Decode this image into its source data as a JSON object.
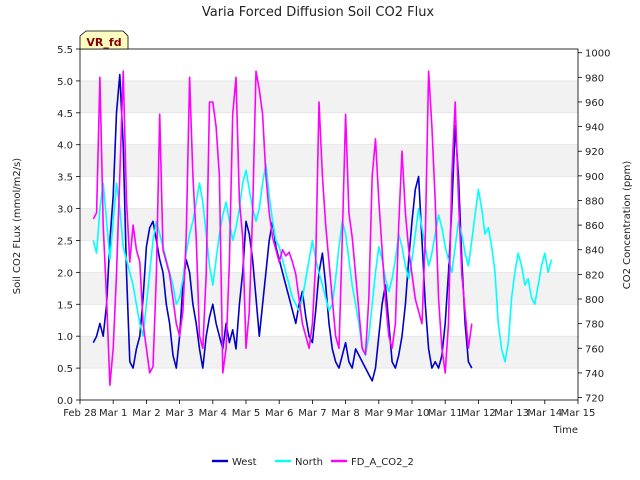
{
  "chart_data": {
    "type": "line",
    "title": "Varia Forced Diffusion Soil CO2 Flux",
    "xlabel": "Time",
    "ylabel_left": "Soil CO2 FLux (mmol/m2/s)",
    "ylabel_right": "CO2 Concentration (ppm)",
    "badge": "VR_fd",
    "x_ticks": [
      "Feb 28",
      "Mar 1",
      "Mar 2",
      "Mar 3",
      "Mar 4",
      "Mar 5",
      "Mar 6",
      "Mar 7",
      "Mar 8",
      "Mar 9",
      "Mar 10",
      "Mar 11",
      "Mar 12",
      "Mar 13",
      "Mar 14",
      "Mar 15"
    ],
    "x_range_days": [
      0,
      15
    ],
    "ylim_left": [
      0.0,
      5.5
    ],
    "ylim_right": [
      718,
      1003
    ],
    "y_ticks_left": [
      "0.0",
      "0.5",
      "1.0",
      "1.5",
      "2.0",
      "2.5",
      "3.0",
      "3.5",
      "4.0",
      "4.5",
      "5.0",
      "5.5"
    ],
    "y_ticks_right": [
      "720",
      "740",
      "760",
      "780",
      "800",
      "820",
      "840",
      "860",
      "880",
      "900",
      "920",
      "940",
      "960",
      "980",
      "1000"
    ],
    "grid": "horizontal bands",
    "legend_position": "bottom-center",
    "series": [
      {
        "name": "West",
        "axis": "left",
        "color": "#0000cc",
        "x": [
          0.4,
          0.5,
          0.6,
          0.7,
          0.8,
          0.9,
          1.0,
          1.1,
          1.2,
          1.3,
          1.4,
          1.5,
          1.6,
          1.7,
          1.8,
          1.9,
          2.0,
          2.1,
          2.2,
          2.3,
          2.4,
          2.5,
          2.6,
          2.7,
          2.8,
          2.9,
          3.0,
          3.1,
          3.2,
          3.3,
          3.4,
          3.5,
          3.6,
          3.7,
          3.8,
          3.9,
          4.0,
          4.1,
          4.2,
          4.3,
          4.4,
          4.5,
          4.6,
          4.7,
          4.8,
          4.9,
          5.0,
          5.1,
          5.2,
          5.3,
          5.4,
          5.5,
          5.6,
          5.7,
          5.8,
          5.9,
          6.0,
          6.1,
          6.2,
          6.3,
          6.4,
          6.5,
          6.6,
          6.7,
          6.8,
          6.9,
          7.0,
          7.1,
          7.2,
          7.3,
          7.4,
          7.5,
          7.6,
          7.7,
          7.8,
          7.9,
          8.0,
          8.1,
          8.2,
          8.3,
          8.4,
          8.5,
          8.6,
          8.7,
          8.8,
          8.9,
          9.0,
          9.1,
          9.2,
          9.3,
          9.4,
          9.5,
          9.6,
          9.7,
          9.8,
          9.9,
          10.0,
          10.1,
          10.2,
          10.3,
          10.4,
          10.5,
          10.6,
          10.7,
          10.8,
          10.9,
          11.0,
          11.1,
          11.2,
          11.3,
          11.4,
          11.5,
          11.6,
          11.7,
          11.8
        ],
        "y": [
          0.9,
          1.0,
          1.2,
          1.0,
          1.5,
          2.5,
          3.2,
          4.5,
          5.1,
          4.0,
          2.0,
          0.6,
          0.5,
          0.8,
          1.0,
          1.6,
          2.4,
          2.7,
          2.8,
          2.5,
          2.2,
          2.0,
          1.5,
          1.2,
          0.7,
          0.5,
          1.0,
          1.8,
          2.2,
          2.0,
          1.5,
          1.2,
          0.8,
          0.5,
          1.0,
          1.3,
          1.5,
          1.2,
          1.0,
          0.8,
          1.2,
          0.9,
          1.1,
          0.8,
          1.5,
          2.0,
          2.8,
          2.6,
          2.2,
          1.6,
          1.0,
          1.5,
          2.0,
          2.5,
          2.8,
          2.4,
          2.2,
          2.0,
          1.8,
          1.6,
          1.4,
          1.2,
          1.5,
          1.7,
          1.3,
          1.0,
          0.9,
          1.4,
          2.0,
          2.3,
          1.8,
          1.2,
          0.8,
          0.6,
          0.5,
          0.7,
          0.9,
          0.6,
          0.5,
          0.8,
          0.7,
          0.6,
          0.5,
          0.4,
          0.3,
          0.5,
          1.0,
          1.5,
          1.8,
          1.2,
          0.6,
          0.5,
          0.7,
          1.0,
          1.5,
          2.2,
          2.8,
          3.3,
          3.5,
          2.5,
          1.5,
          0.8,
          0.5,
          0.6,
          0.5,
          0.7,
          1.2,
          2.0,
          3.0,
          4.3,
          3.5,
          2.2,
          1.2,
          0.6,
          0.5
        ],
        "_note_units": "x in days since Feb 28"
      },
      {
        "name": "North",
        "axis": "left",
        "color": "#00ffff",
        "x": [
          0.4,
          0.5,
          0.6,
          0.7,
          0.8,
          0.9,
          1.0,
          1.1,
          1.2,
          1.3,
          1.4,
          1.5,
          1.6,
          1.7,
          1.8,
          1.9,
          2.0,
          2.1,
          2.2,
          2.3,
          2.4,
          2.5,
          2.6,
          2.7,
          2.8,
          2.9,
          3.0,
          3.1,
          3.2,
          3.3,
          3.4,
          3.5,
          3.6,
          3.7,
          3.8,
          3.9,
          4.0,
          4.1,
          4.2,
          4.3,
          4.4,
          4.5,
          4.6,
          4.7,
          4.8,
          4.9,
          5.0,
          5.1,
          5.2,
          5.3,
          5.4,
          5.5,
          5.6,
          5.7,
          5.8,
          5.9,
          6.0,
          6.1,
          6.2,
          6.3,
          6.4,
          6.5,
          6.6,
          6.7,
          6.8,
          6.9,
          7.0,
          7.1,
          7.2,
          7.3,
          7.4,
          7.5,
          7.6,
          7.7,
          7.8,
          7.9,
          8.0,
          8.1,
          8.2,
          8.3,
          8.4,
          8.5,
          8.6,
          8.7,
          8.8,
          8.9,
          9.0,
          9.1,
          9.2,
          9.3,
          9.4,
          9.5,
          9.6,
          9.7,
          9.8,
          9.9,
          10.0,
          10.1,
          10.2,
          10.3,
          10.4,
          10.5,
          10.6,
          10.7,
          10.8,
          10.9,
          11.0,
          11.1,
          11.2,
          11.3,
          11.4,
          11.5,
          11.6,
          11.7,
          11.8,
          11.9,
          12.0,
          12.1,
          12.2,
          12.3,
          12.4,
          12.5,
          12.6,
          12.7,
          12.8,
          12.9,
          13.0,
          13.1,
          13.2,
          13.3,
          13.4,
          13.5,
          13.6,
          13.7,
          13.8,
          13.9,
          14.0,
          14.1,
          14.2
        ],
        "y": [
          2.5,
          2.3,
          3.0,
          3.4,
          2.8,
          2.2,
          2.8,
          3.4,
          3.0,
          2.4,
          2.2,
          2.0,
          1.8,
          1.5,
          1.2,
          1.0,
          1.5,
          2.0,
          2.5,
          2.8,
          2.6,
          2.4,
          2.2,
          2.0,
          1.8,
          1.5,
          1.6,
          1.9,
          2.3,
          2.6,
          2.8,
          3.1,
          3.4,
          3.1,
          2.6,
          2.1,
          1.8,
          2.2,
          2.6,
          2.9,
          3.1,
          2.8,
          2.5,
          2.7,
          3.0,
          3.4,
          3.6,
          3.3,
          3.0,
          2.8,
          3.0,
          3.4,
          3.7,
          3.2,
          2.8,
          2.5,
          2.4,
          2.2,
          2.0,
          1.8,
          1.6,
          1.5,
          1.4,
          1.6,
          1.9,
          2.2,
          2.5,
          2.2,
          2.0,
          1.8,
          1.6,
          1.4,
          1.5,
          1.9,
          2.4,
          2.8,
          2.6,
          2.2,
          1.8,
          1.5,
          1.2,
          0.8,
          0.7,
          1.0,
          1.5,
          2.0,
          2.4,
          2.2,
          1.9,
          1.7,
          1.9,
          2.2,
          2.6,
          2.4,
          2.1,
          1.9,
          2.2,
          2.6,
          3.0,
          2.7,
          2.4,
          2.1,
          2.3,
          2.6,
          2.9,
          2.7,
          2.4,
          2.2,
          2.0,
          2.4,
          2.8,
          2.6,
          2.3,
          2.1,
          2.5,
          2.9,
          3.3,
          3.0,
          2.6,
          2.7,
          2.4,
          2.0,
          1.2,
          0.8,
          0.6,
          0.9,
          1.6,
          2.0,
          2.3,
          2.1,
          1.8,
          1.9,
          1.6,
          1.5,
          1.8,
          2.1,
          2.3,
          2.0,
          2.2
        ],
        "_note_units": "x in days since Feb 28"
      },
      {
        "name": "FD_A_CO2_2",
        "axis": "right",
        "color": "#ff00ff",
        "x": [
          0.4,
          0.5,
          0.6,
          0.7,
          0.8,
          0.9,
          1.0,
          1.1,
          1.2,
          1.3,
          1.4,
          1.5,
          1.6,
          1.7,
          1.8,
          1.9,
          2.0,
          2.1,
          2.2,
          2.3,
          2.4,
          2.5,
          2.6,
          2.7,
          2.8,
          2.9,
          3.0,
          3.1,
          3.2,
          3.3,
          3.4,
          3.5,
          3.6,
          3.7,
          3.8,
          3.9,
          4.0,
          4.1,
          4.2,
          4.3,
          4.4,
          4.5,
          4.6,
          4.7,
          4.8,
          4.9,
          5.0,
          5.1,
          5.2,
          5.3,
          5.4,
          5.5,
          5.6,
          5.7,
          5.8,
          5.9,
          6.0,
          6.1,
          6.2,
          6.3,
          6.4,
          6.5,
          6.6,
          6.7,
          6.8,
          6.9,
          7.0,
          7.1,
          7.2,
          7.3,
          7.4,
          7.5,
          7.6,
          7.7,
          7.8,
          7.9,
          8.0,
          8.1,
          8.2,
          8.3,
          8.4,
          8.5,
          8.6,
          8.7,
          8.8,
          8.9,
          9.0,
          9.1,
          9.2,
          9.3,
          9.4,
          9.5,
          9.6,
          9.7,
          9.8,
          9.9,
          10.0,
          10.1,
          10.2,
          10.3,
          10.4,
          10.5,
          10.6,
          10.7,
          10.8,
          10.9,
          11.0,
          11.1,
          11.2,
          11.3,
          11.4,
          11.5,
          11.6,
          11.7,
          11.8
        ],
        "y": [
          865,
          870,
          980,
          860,
          800,
          730,
          760,
          820,
          900,
          985,
          880,
          830,
          860,
          840,
          830,
          780,
          760,
          740,
          745,
          820,
          950,
          840,
          830,
          820,
          800,
          780,
          770,
          790,
          850,
          980,
          900,
          850,
          770,
          760,
          820,
          960,
          960,
          940,
          900,
          740,
          760,
          830,
          950,
          980,
          880,
          850,
          760,
          790,
          870,
          985,
          970,
          950,
          900,
          870,
          850,
          840,
          830,
          840,
          835,
          838,
          830,
          820,
          800,
          780,
          770,
          760,
          780,
          830,
          960,
          900,
          860,
          830,
          800,
          770,
          760,
          850,
          950,
          870,
          850,
          820,
          790,
          760,
          755,
          800,
          900,
          930,
          880,
          840,
          800,
          770,
          760,
          780,
          860,
          920,
          870,
          840,
          820,
          800,
          790,
          780,
          850,
          985,
          940,
          880,
          800,
          760,
          740,
          780,
          900,
          960,
          880,
          820,
          790,
          760,
          780
        ],
        "_note_units": "x in days since Feb 28"
      }
    ]
  }
}
